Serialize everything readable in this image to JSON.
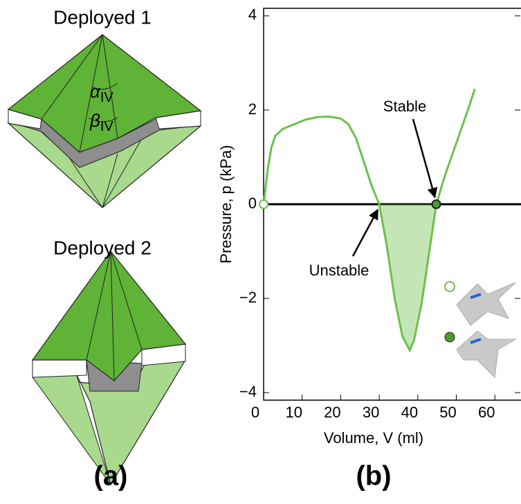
{
  "panel_a": {
    "title_top": "Deployed 1",
    "title_bottom": "Deployed 2",
    "alpha": "α",
    "alpha_sub": "IV",
    "beta": "β",
    "beta_sub": "IV",
    "label": "(a)"
  },
  "chart_data": {
    "type": "line",
    "x_label": "Volume, V (ml)",
    "y_label": "Pressure, p (kPa)",
    "label": "(b)",
    "xlim": [
      0,
      66.6
    ],
    "ylim": [
      -4.16,
      4.16
    ],
    "xticks": [
      0,
      10,
      20,
      30,
      40,
      50,
      60
    ],
    "yticks": [
      {
        "value": -4,
        "label": "−4"
      },
      {
        "value": -2,
        "label": "−2"
      },
      0,
      2,
      4
    ],
    "series": [
      {
        "color": "#6cc04a",
        "x": [
          0,
          1,
          2,
          3,
          5,
          8,
          11,
          14,
          17,
          20,
          22,
          24,
          26,
          28,
          30,
          32,
          34,
          36,
          37.9,
          39,
          41,
          43,
          44.8,
          47,
          50,
          53,
          54.8
        ],
        "values": [
          0,
          0.7,
          1.2,
          1.45,
          1.6,
          1.7,
          1.8,
          1.85,
          1.86,
          1.82,
          1.7,
          1.4,
          0.9,
          0.4,
          0,
          -0.9,
          -2,
          -2.8,
          -3.1,
          -2.9,
          -2.1,
          -1,
          0,
          0.6,
          1.3,
          2.0,
          2.45
        ]
      }
    ],
    "markers": [
      {
        "x": 0,
        "y": 0,
        "filled": false
      },
      {
        "x": 44.8,
        "y": 0,
        "filled": true
      }
    ],
    "annotations": [
      "Stable",
      "Unstable"
    ]
  }
}
